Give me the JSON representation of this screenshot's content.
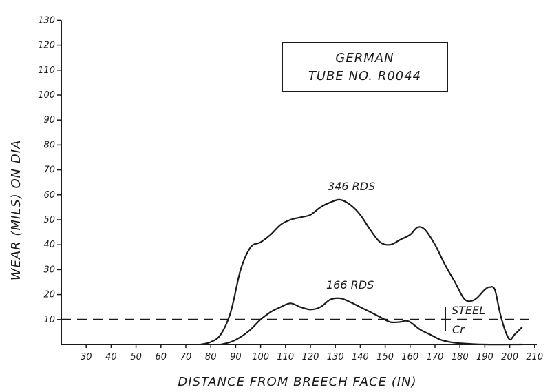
{
  "chart_data": {
    "type": "line",
    "xlabel": "DISTANCE FROM BREECH FACE (IN)",
    "ylabel": "WEAR (MILS) ON DIA",
    "xlim": [
      20,
      210
    ],
    "ylim": [
      0,
      130
    ],
    "x_ticks": [
      "30",
      "40",
      "50",
      "60",
      "70",
      "80",
      "90",
      "100",
      "110",
      "120",
      "130",
      "140",
      "150",
      "160",
      "170",
      "180",
      "190",
      "200",
      "210"
    ],
    "y_ticks": [
      "10",
      "20",
      "30",
      "40",
      "50",
      "60",
      "70",
      "80",
      "90",
      "100",
      "110",
      "120",
      "130"
    ],
    "box_lines": [
      "GERMAN",
      "TUBE NO. R0044"
    ],
    "series": [
      {
        "name": "346 RDS",
        "points": [
          [
            76,
            0
          ],
          [
            80,
            1
          ],
          [
            84,
            4
          ],
          [
            88,
            13
          ],
          [
            92,
            30
          ],
          [
            96,
            39
          ],
          [
            100,
            41
          ],
          [
            104,
            44
          ],
          [
            108,
            48
          ],
          [
            112,
            50
          ],
          [
            116,
            51
          ],
          [
            120,
            52
          ],
          [
            124,
            55
          ],
          [
            128,
            57
          ],
          [
            132,
            58
          ],
          [
            136,
            56
          ],
          [
            140,
            52
          ],
          [
            144,
            46
          ],
          [
            148,
            41
          ],
          [
            152,
            40
          ],
          [
            156,
            42
          ],
          [
            160,
            44
          ],
          [
            163,
            47
          ],
          [
            166,
            46
          ],
          [
            170,
            40
          ],
          [
            174,
            32
          ],
          [
            178,
            25
          ],
          [
            182,
            18
          ],
          [
            186,
            18
          ],
          [
            190,
            22
          ],
          [
            192,
            23
          ],
          [
            194,
            22
          ],
          [
            196,
            13
          ],
          [
            198,
            6
          ],
          [
            200,
            2
          ],
          [
            202,
            4
          ],
          [
            205,
            7
          ]
        ]
      },
      {
        "name": "166 RDS",
        "points": [
          [
            84,
            0
          ],
          [
            88,
            1
          ],
          [
            92,
            3
          ],
          [
            96,
            6
          ],
          [
            100,
            10
          ],
          [
            104,
            13
          ],
          [
            108,
            15
          ],
          [
            112,
            16.5
          ],
          [
            116,
            15
          ],
          [
            120,
            14
          ],
          [
            124,
            15
          ],
          [
            128,
            18
          ],
          [
            132,
            18.5
          ],
          [
            136,
            17
          ],
          [
            140,
            15
          ],
          [
            144,
            13
          ],
          [
            148,
            11
          ],
          [
            152,
            9
          ],
          [
            156,
            9
          ],
          [
            158,
            9.5
          ],
          [
            160,
            9
          ],
          [
            164,
            6
          ],
          [
            168,
            4
          ],
          [
            172,
            2
          ],
          [
            176,
            1
          ],
          [
            180,
            0.5
          ],
          [
            190,
            0
          ],
          [
            205,
            0
          ]
        ]
      }
    ],
    "reference_line": {
      "y": 10,
      "style": "dashed"
    },
    "annotations": {
      "upper": "STEEL",
      "lower": "Cr"
    }
  }
}
